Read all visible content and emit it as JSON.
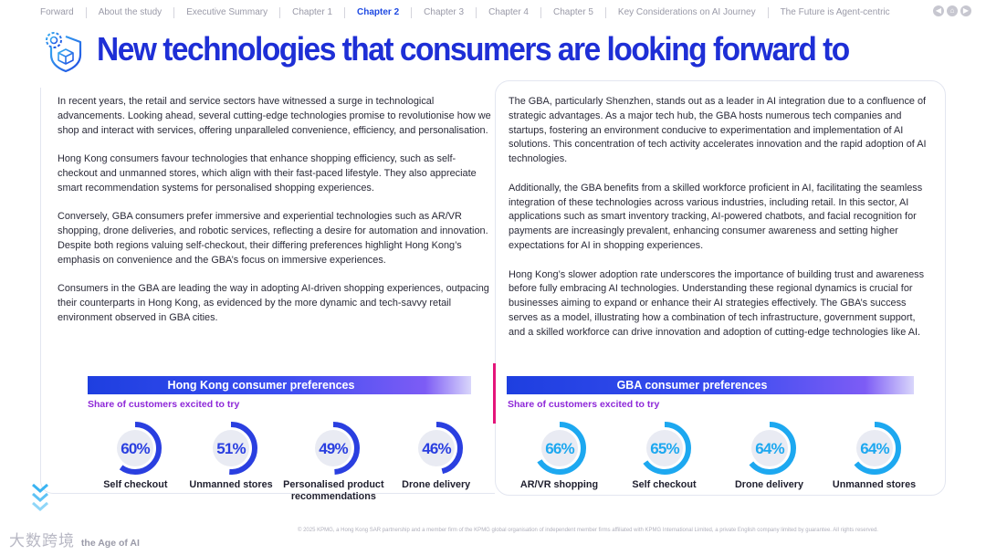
{
  "nav": {
    "items": [
      "Forward",
      "About the study",
      "Executive Summary",
      "Chapter 1",
      "Chapter 2",
      "Chapter 3",
      "Chapter 4",
      "Chapter 5",
      "Key Considerations on AI Journey",
      "The Future is Agent-centric"
    ],
    "active_index": 4,
    "icons": [
      "back-icon",
      "home-icon",
      "forward-icon"
    ]
  },
  "title": "New technologies that consumers are looking forward to",
  "left_column": {
    "paragraphs": [
      "In recent years, the retail and service sectors have witnessed a surge in technological advancements. Looking ahead, several cutting-edge technologies promise to revolutionise how we shop and interact with services, offering unparalleled convenience, efficiency, and personalisation.",
      "Hong Kong consumers favour technologies that enhance shopping efficiency, such as self-checkout and unmanned stores, which align with their fast-paced lifestyle. They also appreciate smart recommendation systems for personalised shopping experiences.",
      "Conversely, GBA consumers prefer immersive and experiential technologies such as AR/VR shopping, drone deliveries, and robotic services, reflecting a desire for automation and innovation. Despite both regions valuing self-checkout, their differing preferences highlight Hong Kong’s emphasis on convenience and the GBA’s focus on immersive experiences.",
      "Consumers in the GBA are leading the way in adopting AI-driven shopping experiences, outpacing their counterparts in Hong Kong, as evidenced by the more dynamic and tech-savvy retail environment observed in GBA cities."
    ]
  },
  "right_column": {
    "paragraphs": [
      "The GBA, particularly Shenzhen, stands out as a leader in AI integration due to a confluence of strategic advantages. As a major tech hub, the GBA hosts numerous tech companies and startups, fostering an environment conducive to experimentation and implementation of AI solutions. This concentration of tech activity accelerates innovation and the rapid adoption of AI technologies.",
      "Additionally, the GBA benefits from a skilled workforce proficient in AI, facilitating the seamless integration of these technologies across various industries, including retail. In this sector, AI applications such as smart inventory tracking, AI-powered chatbots, and facial recognition for payments are increasingly prevalent, enhancing consumer awareness and setting higher expectations for AI in shopping experiences.",
      "Hong Kong’s slower adoption rate underscores the importance of building trust and awareness before fully embracing AI technologies. Understanding these regional dynamics is crucial for businesses aiming to expand or enhance their AI strategies effectively. The GBA’s success serves as a model, illustrating how a combination of tech infrastructure, government support, and a skilled workforce can drive innovation and adoption of cutting-edge technologies like AI."
    ]
  },
  "chart_data": [
    {
      "type": "gauge",
      "title": "Hong Kong consumer preferences",
      "subtitle": "Share of customers excited to try",
      "categories": [
        "Self checkout",
        "Unmanned stores",
        "Personalised product recommendations",
        "Drone delivery"
      ],
      "values": [
        60,
        51,
        49,
        46
      ],
      "labels": [
        "60%",
        "51%",
        "49%",
        "46%"
      ],
      "unit": "%",
      "color": "#2a3fe0"
    },
    {
      "type": "gauge",
      "title": "GBA consumer preferences",
      "subtitle": "Share of customers excited to try",
      "categories": [
        "AR/VR shopping",
        "Self checkout",
        "Drone delivery",
        "Unmanned stores"
      ],
      "values": [
        66,
        65,
        64,
        64
      ],
      "labels": [
        "66%",
        "65%",
        "64%",
        "64%"
      ],
      "unit": "%",
      "color": "#1da8f0"
    }
  ],
  "footer": {
    "watermark": "大数跨境",
    "report_title": "the Age of AI",
    "copyright": "© 2025 KPMG, a Hong Kong SAR partnership and a member firm of the KPMG global organisation of independent member firms affiliated with KPMG International Limited, a private English company limited by guarantee. All rights reserved."
  },
  "colors": {
    "title_blue": "#1e2fd6",
    "accent_purple": "#8e28d8",
    "accent_pink": "#e4157a",
    "hk_gauge": "#2a3fe0",
    "gba_gauge": "#1da8f0"
  }
}
